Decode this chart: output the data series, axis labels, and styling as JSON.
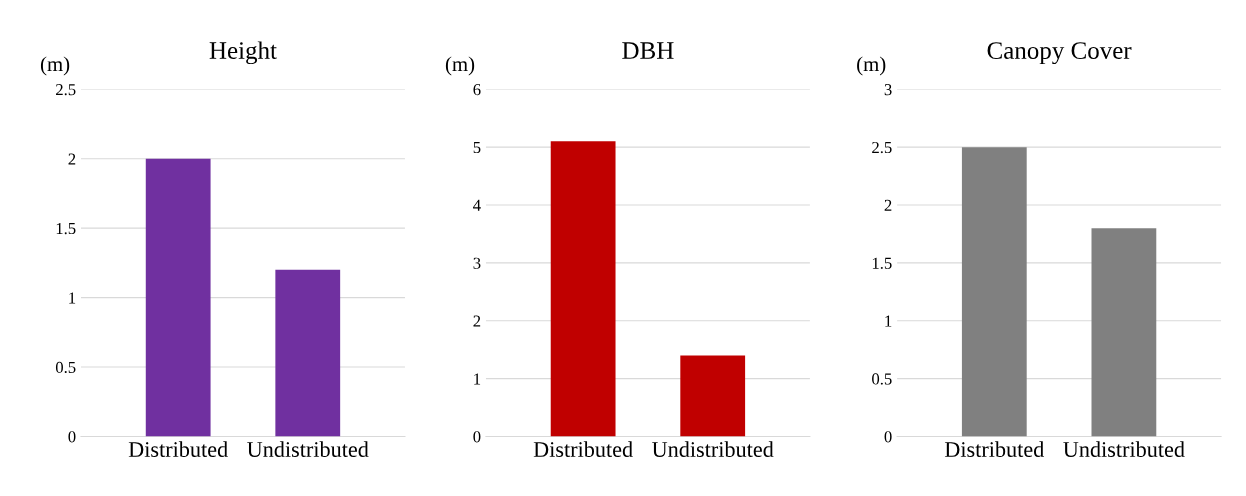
{
  "chart_data": [
    {
      "type": "bar",
      "title": "Height",
      "ylabel": "(m)",
      "categories": [
        "Distributed",
        "Undistributed"
      ],
      "values": [
        2.0,
        1.2
      ],
      "color": "#7030a0",
      "ylim": [
        0,
        2.5
      ],
      "yticks": [
        0,
        0.5,
        1,
        1.5,
        2,
        2.5
      ],
      "grid": "y"
    },
    {
      "type": "bar",
      "title": "DBH",
      "ylabel": "(m)",
      "categories": [
        "Distributed",
        "Undistributed"
      ],
      "values": [
        5.1,
        1.4
      ],
      "color": "#c00000",
      "ylim": [
        0,
        6
      ],
      "yticks": [
        0,
        1,
        2,
        3,
        4,
        5,
        6
      ],
      "grid": "y"
    },
    {
      "type": "bar",
      "title": "Canopy Cover",
      "ylabel": "(m)",
      "categories": [
        "Distributed",
        "Undistributed"
      ],
      "values": [
        2.5,
        1.8
      ],
      "color": "#808080",
      "ylim": [
        0,
        3
      ],
      "yticks": [
        0,
        0.5,
        1,
        1.5,
        2,
        2.5,
        3
      ],
      "grid": "y"
    }
  ]
}
